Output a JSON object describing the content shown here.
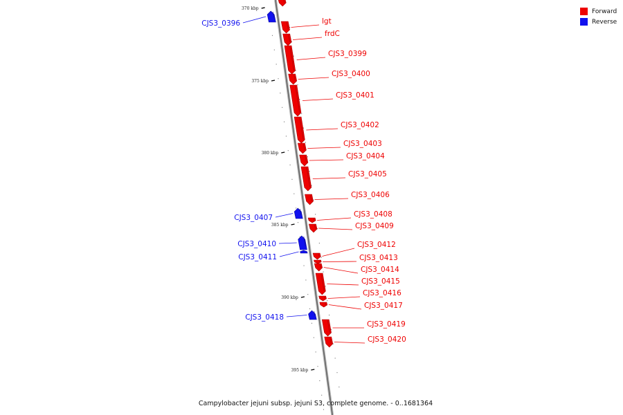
{
  "legend": [
    {
      "label": "Forward",
      "color": "#ee0000"
    },
    {
      "label": "Reverse",
      "color": "#1111ee"
    }
  ],
  "caption": "Campylobacter jejuni subsp. jejuni S3, complete genome. - 0..1681364",
  "scale": {
    "unit": "kbp",
    "labeled_ticks": [
      "370 kbp",
      "375 kbp",
      "380 kbp",
      "385 kbp",
      "390 kbp",
      "395 kbp"
    ]
  },
  "genes": [
    {
      "name": "",
      "strand": "forward"
    },
    {
      "name": "CJS3_0396",
      "strand": "reverse"
    },
    {
      "name": "lgt",
      "strand": "forward"
    },
    {
      "name": "frdC",
      "strand": "forward"
    },
    {
      "name": "CJS3_0399",
      "strand": "forward"
    },
    {
      "name": "CJS3_0400",
      "strand": "forward"
    },
    {
      "name": "CJS3_0401",
      "strand": "forward"
    },
    {
      "name": "CJS3_0402",
      "strand": "forward"
    },
    {
      "name": "CJS3_0403",
      "strand": "forward"
    },
    {
      "name": "CJS3_0404",
      "strand": "forward"
    },
    {
      "name": "CJS3_0405",
      "strand": "forward"
    },
    {
      "name": "CJS3_0406",
      "strand": "forward"
    },
    {
      "name": "CJS3_0407",
      "strand": "reverse"
    },
    {
      "name": "CJS3_0408",
      "strand": "forward"
    },
    {
      "name": "CJS3_0409",
      "strand": "forward"
    },
    {
      "name": "CJS3_0410",
      "strand": "reverse"
    },
    {
      "name": "CJS3_0411",
      "strand": "reverse"
    },
    {
      "name": "CJS3_0412",
      "strand": "forward"
    },
    {
      "name": "CJS3_0413",
      "strand": "forward"
    },
    {
      "name": "CJS3_0414",
      "strand": "forward"
    },
    {
      "name": "CJS3_0415",
      "strand": "forward"
    },
    {
      "name": "CJS3_0416",
      "strand": "forward"
    },
    {
      "name": "CJS3_0417",
      "strand": "forward"
    },
    {
      "name": "CJS3_0418",
      "strand": "reverse"
    },
    {
      "name": "CJS3_0419",
      "strand": "forward"
    },
    {
      "name": "CJS3_0420",
      "strand": "forward"
    }
  ]
}
